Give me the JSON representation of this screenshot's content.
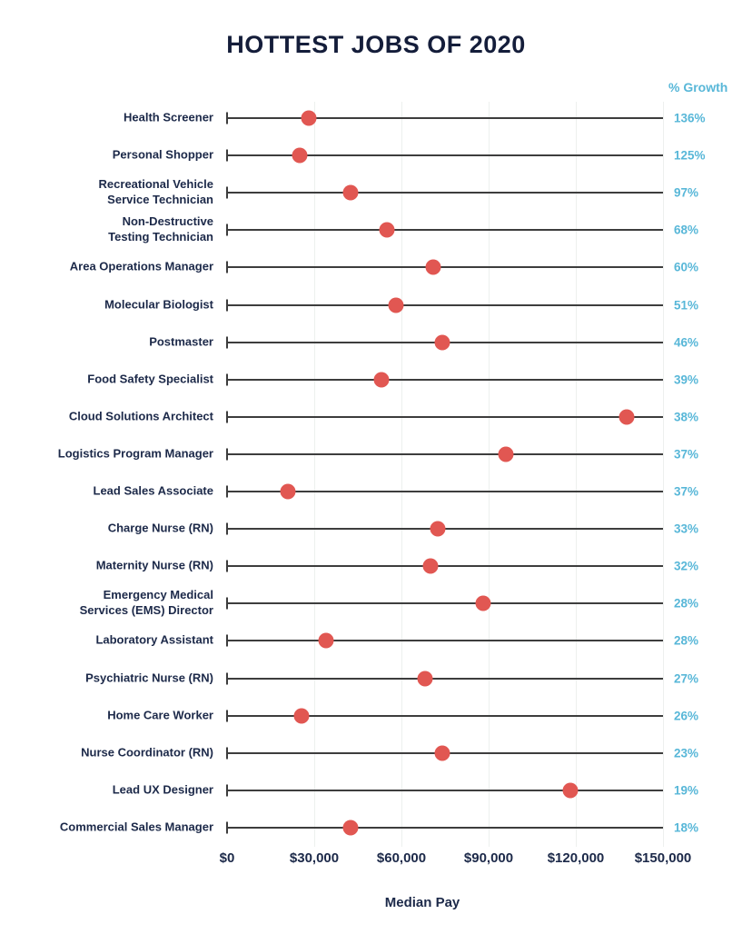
{
  "title": "HOTTEST JOBS OF 2020",
  "growth_header": "% Growth",
  "xlabel": "Median Pay",
  "colors": {
    "title_navy": "#141d3a",
    "label_navy": "#1c2949",
    "growth_blue": "#58b7d8",
    "dot_red": "#e15752",
    "line_dark": "#3d3d3d",
    "grid_light": "#edf0ee",
    "background": "#ffffff"
  },
  "chart_data": {
    "type": "scatter",
    "title": "HOTTEST JOBS OF 2020",
    "xlabel": "Median Pay",
    "right_axis_label": "% Growth",
    "xlim": [
      0,
      150000
    ],
    "x_ticks": [
      "$0",
      "$30,000",
      "$60,000",
      "$90,000",
      "$120,000",
      "$150,000"
    ],
    "x_tick_values": [
      0,
      30000,
      60000,
      90000,
      120000,
      150000
    ],
    "grid": "vertical-light",
    "legend": "none",
    "rows": [
      {
        "job": "Health Screener",
        "median_pay": 28000,
        "growth": "136%"
      },
      {
        "job": "Personal Shopper",
        "median_pay": 25000,
        "growth": "125%"
      },
      {
        "job": "Recreational Vehicle\nService Technician",
        "median_pay": 42500,
        "growth": "97%"
      },
      {
        "job": "Non-Destructive\nTesting Technician",
        "median_pay": 55000,
        "growth": "68%"
      },
      {
        "job": "Area Operations Manager",
        "median_pay": 71000,
        "growth": "60%"
      },
      {
        "job": "Molecular Biologist",
        "median_pay": 58000,
        "growth": "51%"
      },
      {
        "job": "Postmaster",
        "median_pay": 74000,
        "growth": "46%"
      },
      {
        "job": "Food Safety Specialist",
        "median_pay": 53000,
        "growth": "39%"
      },
      {
        "job": "Cloud Solutions Architect",
        "median_pay": 137500,
        "growth": "38%"
      },
      {
        "job": "Logistics Program Manager",
        "median_pay": 96000,
        "growth": "37%"
      },
      {
        "job": "Lead Sales Associate",
        "median_pay": 21000,
        "growth": "37%"
      },
      {
        "job": "Charge Nurse (RN)",
        "median_pay": 72500,
        "growth": "33%"
      },
      {
        "job": "Maternity Nurse (RN)",
        "median_pay": 70000,
        "growth": "32%"
      },
      {
        "job": "Emergency Medical\nServices (EMS) Director",
        "median_pay": 88000,
        "growth": "28%"
      },
      {
        "job": "Laboratory Assistant",
        "median_pay": 34000,
        "growth": "28%"
      },
      {
        "job": "Psychiatric Nurse (RN)",
        "median_pay": 68000,
        "growth": "27%"
      },
      {
        "job": "Home Care Worker",
        "median_pay": 25500,
        "growth": "26%"
      },
      {
        "job": "Nurse Coordinator (RN)",
        "median_pay": 74000,
        "growth": "23%"
      },
      {
        "job": "Lead UX Designer",
        "median_pay": 118000,
        "growth": "19%"
      },
      {
        "job": "Commercial Sales Manager",
        "median_pay": 42500,
        "growth": "18%"
      }
    ]
  }
}
